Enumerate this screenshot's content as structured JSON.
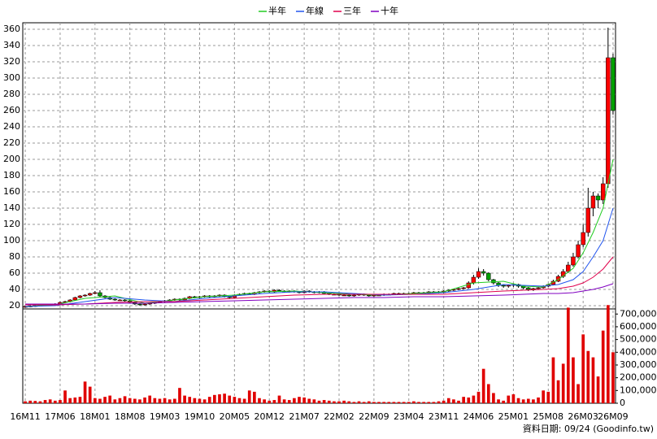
{
  "chart_data": {
    "type": "candlestick",
    "footnote": "資料日期: 09/24 (Goodinfo.tw)",
    "legend": "top",
    "grid": true,
    "up_color": "#ff0000",
    "down_color": "#00a000",
    "categories": [
      "16M11",
      null,
      null,
      null,
      null,
      null,
      null,
      "17M06",
      null,
      null,
      null,
      null,
      null,
      null,
      "18M01",
      null,
      null,
      null,
      null,
      null,
      null,
      "18M08",
      null,
      null,
      null,
      null,
      null,
      null,
      "19M03",
      null,
      null,
      null,
      null,
      null,
      null,
      "19M10",
      null,
      null,
      null,
      null,
      null,
      null,
      "20M05",
      null,
      null,
      null,
      null,
      null,
      null,
      "20M12",
      null,
      null,
      null,
      null,
      null,
      null,
      "21M07",
      null,
      null,
      null,
      null,
      null,
      null,
      "22M02",
      null,
      null,
      null,
      null,
      null,
      null,
      "22M09",
      null,
      null,
      null,
      null,
      null,
      null,
      "23M04",
      null,
      null,
      null,
      null,
      null,
      null,
      "23M11",
      null,
      null,
      null,
      null,
      null,
      null,
      "24M06",
      null,
      null,
      null,
      null,
      null,
      null,
      "25M01",
      null,
      null,
      null,
      null,
      null,
      null,
      "25M08",
      null,
      null,
      null,
      null,
      null,
      null,
      "26M03",
      null,
      null,
      null,
      null,
      null,
      "26M09"
    ],
    "open": [
      18.5,
      19,
      19.5,
      20,
      20.5,
      21,
      21,
      22,
      24,
      25,
      27,
      30,
      32,
      33,
      35,
      36,
      32,
      30,
      28,
      27,
      27,
      26,
      24,
      22,
      21,
      22,
      23,
      24,
      25,
      26,
      27,
      28,
      27,
      29,
      31,
      30,
      31,
      32,
      31,
      32,
      33,
      31,
      30,
      33,
      34,
      35,
      34,
      36,
      37,
      38,
      37,
      39,
      38,
      37,
      38,
      37,
      36,
      38,
      37,
      36,
      37,
      35,
      34,
      34,
      33,
      33,
      32,
      33,
      34,
      33,
      32,
      33,
      33,
      34,
      34,
      35,
      35,
      35,
      35,
      36,
      36,
      36,
      37,
      37,
      36,
      38,
      39,
      40,
      41,
      42,
      48,
      55,
      62,
      60,
      52,
      48,
      45,
      44,
      45,
      46,
      44,
      42,
      40,
      41,
      42,
      44,
      46,
      50,
      56,
      62,
      70,
      80,
      95,
      110,
      140,
      155,
      150,
      170,
      325
    ],
    "high": [
      20,
      20.5,
      21,
      21.5,
      22,
      22,
      23,
      25,
      26,
      28,
      31,
      33,
      34,
      36,
      38,
      39,
      33,
      31,
      29,
      28,
      28,
      27,
      25,
      23,
      23,
      24,
      25,
      26,
      27,
      28,
      29,
      29,
      30,
      32,
      32,
      32,
      33,
      33,
      33,
      34,
      34,
      32,
      34,
      35,
      36,
      36,
      37,
      38,
      39,
      39,
      40,
      40,
      39,
      39,
      39,
      38,
      39,
      39,
      38,
      38,
      38,
      36,
      35,
      35,
      34,
      34,
      34,
      35,
      35,
      34,
      34,
      34,
      35,
      35,
      36,
      36,
      36,
      36,
      37,
      37,
      37,
      38,
      38,
      38,
      39,
      40,
      41,
      42,
      43,
      50,
      58,
      66,
      65,
      61,
      53,
      49,
      46,
      46,
      47,
      47,
      45,
      43,
      42,
      43,
      45,
      47,
      52,
      58,
      65,
      74,
      85,
      100,
      120,
      165,
      160,
      158,
      178,
      362,
      330
    ],
    "low": [
      17.5,
      18,
      18.5,
      19,
      19.5,
      20,
      20,
      21,
      23,
      24,
      26,
      29,
      31,
      32,
      34,
      31,
      29,
      27,
      26,
      26,
      25,
      23,
      21,
      20,
      20,
      21,
      22,
      23,
      24,
      25,
      26,
      26,
      26,
      28,
      29,
      29,
      30,
      30,
      30,
      31,
      30,
      29,
      29,
      32,
      33,
      33,
      33,
      35,
      36,
      36,
      36,
      37,
      36,
      36,
      36,
      35,
      35,
      36,
      35,
      35,
      34,
      33,
      33,
      32,
      32,
      31,
      31,
      32,
      32,
      31,
      31,
      32,
      32,
      33,
      33,
      34,
      34,
      34,
      34,
      35,
      35,
      35,
      36,
      35,
      35,
      37,
      38,
      39,
      40,
      41,
      46,
      53,
      57,
      50,
      46,
      43,
      42,
      42,
      43,
      42,
      40,
      38,
      38,
      40,
      41,
      43,
      45,
      49,
      54,
      60,
      68,
      78,
      92,
      105,
      130,
      140,
      145,
      165,
      255
    ],
    "close": [
      19,
      19.5,
      20,
      20.5,
      21,
      21,
      22,
      24,
      25,
      27,
      30,
      32,
      33,
      35,
      36,
      32,
      30,
      28,
      27,
      27,
      26,
      24,
      22,
      21,
      22,
      23,
      24,
      25,
      26,
      27,
      28,
      27,
      29,
      31,
      30,
      31,
      32,
      31,
      32,
      33,
      31,
      30,
      33,
      34,
      35,
      34,
      36,
      37,
      38,
      37,
      39,
      38,
      37,
      38,
      37,
      36,
      38,
      37,
      36,
      37,
      35,
      34,
      34,
      33,
      33,
      32,
      33,
      34,
      33,
      32,
      33,
      33,
      34,
      34,
      35,
      35,
      35,
      35,
      36,
      36,
      36,
      37,
      37,
      36,
      38,
      39,
      40,
      41,
      42,
      48,
      55,
      62,
      60,
      52,
      48,
      45,
      44,
      45,
      46,
      44,
      42,
      40,
      41,
      42,
      44,
      46,
      50,
      56,
      62,
      70,
      80,
      95,
      110,
      140,
      155,
      150,
      170,
      325,
      260
    ],
    "ylim": [
      16,
      368
    ],
    "yticks": [
      20,
      40,
      60,
      80,
      100,
      120,
      140,
      160,
      180,
      200,
      220,
      240,
      260,
      280,
      300,
      320,
      340,
      360
    ],
    "volume": {
      "color": "#e00000",
      "ylim": [
        0,
        740000
      ],
      "yticks": [
        0,
        {
          "value": 100000,
          "label": "100,000"
        },
        {
          "value": 200000,
          "label": "200,000"
        },
        {
          "value": 300000,
          "label": "300,000"
        },
        {
          "value": 400000,
          "label": "400,000"
        },
        {
          "value": 500000,
          "label": "500,000"
        },
        {
          "value": 600000,
          "label": "600,000"
        },
        {
          "value": 700000,
          "label": "700,000"
        }
      ],
      "values": [
        15000,
        20000,
        18000,
        15000,
        25000,
        30000,
        20000,
        25000,
        100000,
        40000,
        45000,
        50000,
        170000,
        130000,
        40000,
        35000,
        50000,
        60000,
        30000,
        40000,
        55000,
        40000,
        35000,
        30000,
        45000,
        60000,
        40000,
        35000,
        40000,
        30000,
        35000,
        120000,
        60000,
        50000,
        40000,
        35000,
        30000,
        50000,
        65000,
        70000,
        75000,
        60000,
        50000,
        40000,
        35000,
        100000,
        90000,
        40000,
        30000,
        20000,
        25000,
        60000,
        30000,
        25000,
        40000,
        50000,
        45000,
        35000,
        30000,
        20000,
        25000,
        20000,
        15000,
        15000,
        20000,
        15000,
        10000,
        15000,
        10000,
        15000,
        10000,
        10000,
        10000,
        10000,
        10000,
        10000,
        10000,
        10000,
        15000,
        10000,
        10000,
        10000,
        10000,
        15000,
        20000,
        40000,
        30000,
        20000,
        50000,
        45000,
        60000,
        90000,
        270000,
        150000,
        80000,
        30000,
        20000,
        60000,
        70000,
        40000,
        30000,
        35000,
        30000,
        45000,
        100000,
        90000,
        360000,
        180000,
        310000,
        750000,
        360000,
        150000,
        540000,
        410000,
        360000,
        210000,
        570000,
        770000,
        400000
      ]
    },
    "series": [
      {
        "name": "半年",
        "color": "#22cc22",
        "x": [
          0,
          6,
          12,
          18,
          24,
          30,
          36,
          42,
          48,
          54,
          60,
          66,
          72,
          78,
          84,
          90,
          96,
          100,
          104,
          107,
          110,
          112,
          114,
          116,
          118
        ],
        "values": [
          19,
          21,
          29,
          32,
          23,
          27,
          31,
          33,
          37,
          38,
          36,
          34,
          33,
          35,
          37,
          48,
          50,
          44,
          43,
          52,
          66,
          85,
          110,
          140,
          200
        ]
      },
      {
        "name": "年線",
        "color": "#2255ee",
        "x": [
          0,
          6,
          12,
          18,
          24,
          30,
          36,
          42,
          48,
          54,
          60,
          66,
          72,
          78,
          84,
          90,
          96,
          100,
          104,
          107,
          110,
          112,
          114,
          116,
          118
        ],
        "values": [
          19,
          20,
          25,
          30,
          27,
          25,
          29,
          32,
          35,
          37,
          37,
          35,
          33,
          34,
          36,
          40,
          46,
          45,
          44,
          46,
          52,
          62,
          80,
          100,
          140
        ]
      },
      {
        "name": "三年",
        "color": "#e0004c",
        "x": [
          0,
          6,
          12,
          18,
          24,
          30,
          36,
          42,
          48,
          54,
          60,
          66,
          72,
          78,
          84,
          90,
          96,
          100,
          104,
          107,
          110,
          112,
          114,
          116,
          118
        ],
        "values": [
          21,
          21,
          22,
          24,
          25,
          25,
          27,
          29,
          31,
          33,
          34,
          34,
          34,
          34,
          34,
          36,
          38,
          39,
          40,
          41,
          44,
          48,
          55,
          65,
          80
        ]
      },
      {
        "name": "十年",
        "color": "#8000c0",
        "x": [
          0,
          6,
          12,
          18,
          24,
          30,
          36,
          42,
          48,
          54,
          60,
          66,
          72,
          78,
          84,
          90,
          96,
          100,
          104,
          107,
          110,
          112,
          114,
          116,
          118
        ],
        "values": [
          22,
          22,
          22,
          23,
          23,
          24,
          25,
          26,
          27,
          28,
          29,
          30,
          30,
          31,
          31,
          32,
          33,
          34,
          35,
          35,
          36,
          38,
          40,
          43,
          47
        ]
      }
    ]
  }
}
